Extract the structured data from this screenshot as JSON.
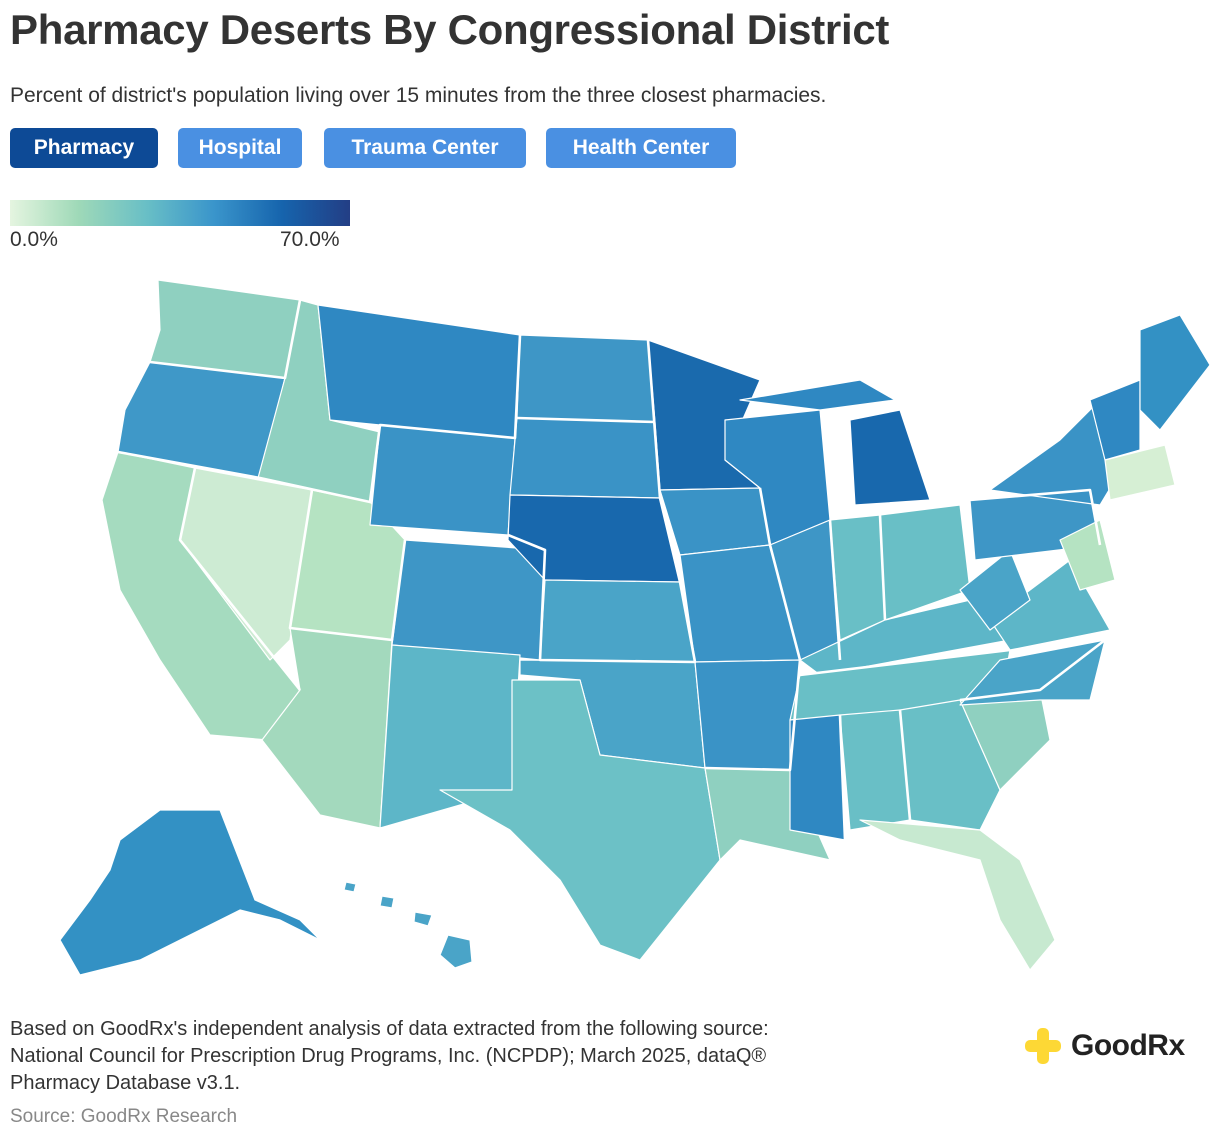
{
  "header": {
    "title": "Pharmacy Deserts By Congressional District",
    "subtitle": "Percent of district's population living over 15 minutes from the three closest pharmacies."
  },
  "tabs": [
    {
      "label": "Pharmacy",
      "active": true
    },
    {
      "label": "Hospital",
      "active": false
    },
    {
      "label": "Trauma Center",
      "active": false
    },
    {
      "label": "Health Center",
      "active": false
    }
  ],
  "legend": {
    "min_label": "0.0%",
    "max_label": "70.0%",
    "colors": [
      "#e5f5e0",
      "#9fd9b8",
      "#69bfc6",
      "#3a95cb",
      "#1664ad",
      "#233e85"
    ]
  },
  "footer": {
    "line1": "Based on GoodRx's independent analysis of data extracted from the following source:",
    "line2": "National Council for Prescription Drug Programs, Inc. (NCPDP); March 2025, dataQ®",
    "line3": "Pharmacy Database v3.1.",
    "source": "Source: GoodRx Research"
  },
  "brand": {
    "name": "GoodRx",
    "logo_icon": "plus-logo-icon",
    "logo_color": "#fdd835"
  }
}
